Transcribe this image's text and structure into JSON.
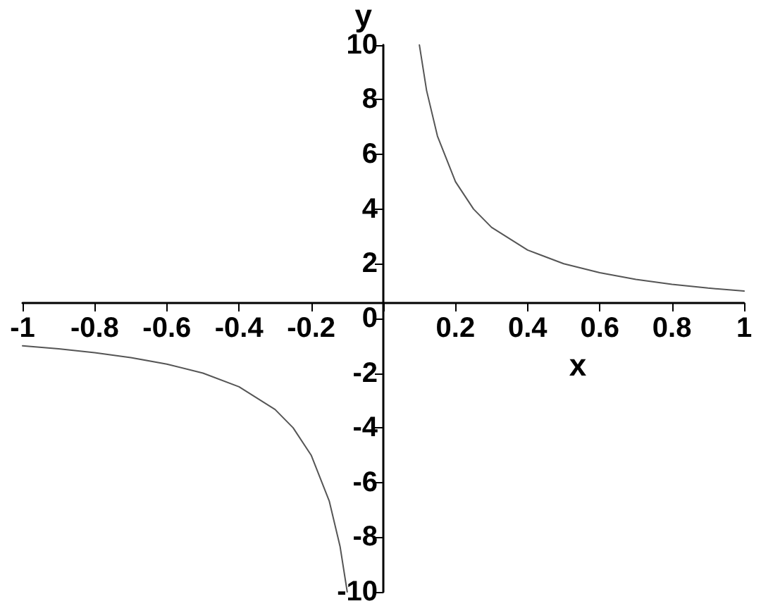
{
  "chart_data": {
    "type": "line",
    "xlabel": "x",
    "ylabel": "y",
    "xlim": [
      -1,
      1
    ],
    "ylim": [
      -10,
      10
    ],
    "xticks": [
      -1,
      -0.8,
      -0.6,
      -0.4,
      -0.2,
      0.2,
      0.4,
      0.6,
      0.8,
      1
    ],
    "yticks": [
      -10,
      -8,
      -6,
      -4,
      -2,
      0,
      2,
      4,
      6,
      8,
      10
    ],
    "grid": false,
    "marker": "none",
    "line_style": "solid",
    "series": [
      {
        "color": "#555555",
        "x": [
          -1,
          -0.9,
          -0.8,
          -0.7,
          -0.6,
          -0.5,
          -0.4,
          -0.3,
          -0.25,
          -0.2,
          -0.15,
          -0.12,
          -0.1
        ],
        "values": [
          -1,
          -1.11,
          -1.25,
          -1.43,
          -1.67,
          -2,
          -2.5,
          -3.33,
          -4,
          -5,
          -6.67,
          -8.33,
          -10
        ]
      },
      {
        "color": "#555555",
        "x": [
          0.1,
          0.12,
          0.15,
          0.2,
          0.25,
          0.3,
          0.4,
          0.5,
          0.6,
          0.7,
          0.8,
          0.9,
          1
        ],
        "values": [
          10,
          8.33,
          6.67,
          5,
          4,
          3.33,
          2.5,
          2,
          1.67,
          1.43,
          1.25,
          1.11,
          1
        ]
      }
    ]
  }
}
